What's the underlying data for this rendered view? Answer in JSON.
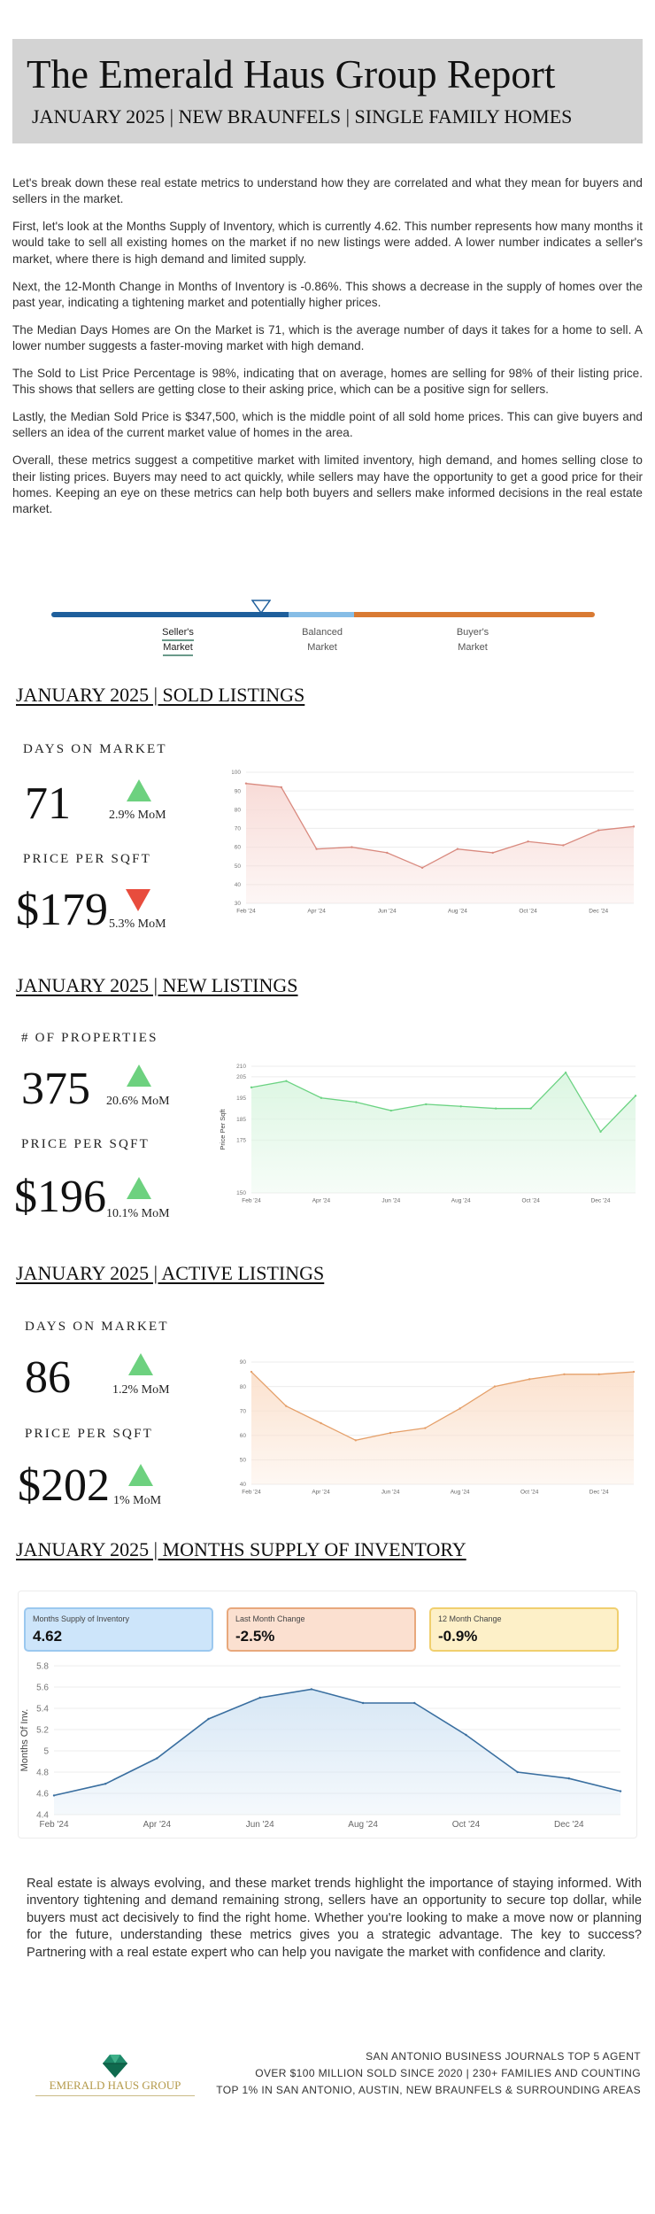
{
  "header": {
    "title": "The Emerald Haus Group Report",
    "subtitle": "JANUARY 2025 | NEW BRAUNFELS | SINGLE FAMILY HOMES"
  },
  "intro": [
    "Let's break down these real estate metrics to understand how they are correlated and what they mean for buyers and sellers in the market.",
    "First, let's look at the Months Supply of Inventory, which is currently 4.62. This number represents how many months it would take to sell all existing homes on the market if no new listings were added. A lower number indicates a seller's market, where there is high demand and limited supply.",
    "Next, the 12-Month Change in Months of Inventory is -0.86%. This shows a decrease in the supply of homes over the past year, indicating a tightening market and potentially higher prices.",
    "The Median Days Homes are On the Market is 71, which is the average number of days it takes for a home to sell. A lower number suggests a faster-moving market with high demand.",
    "The Sold to List Price Percentage is 98%, indicating that on average, homes are selling for 98% of their listing price. This shows that sellers are getting close to their asking price, which can be a positive sign for sellers.",
    "Lastly, the Median Sold Price is $347,500, which is the middle point of all sold home prices. This can give buyers and sellers an idea of the current market value of homes in the area.",
    "Overall, these metrics suggest a competitive market with limited inventory, high demand, and homes selling close to their listing prices. Buyers may need to act quickly, while sellers may have the opportunity to get a good price for their homes. Keeping an eye on these metrics can help both buyers and sellers make informed decisions in the real estate market."
  ],
  "market_scale": {
    "labels": [
      [
        "Seller's",
        "Market"
      ],
      [
        "Balanced",
        "Market"
      ],
      [
        "Buyer's",
        "Market"
      ]
    ],
    "active": "Seller's Market",
    "colors": {
      "seller": "#1e5f9c",
      "balanced": "#86bde6",
      "buyer": "#d97a33"
    }
  },
  "sold": {
    "title": "JANUARY 2025 | SOLD LISTINGS",
    "metric1": {
      "label": "DAYS ON MARKET",
      "value": "71",
      "change": "2.9% MoM",
      "direction": "up"
    },
    "metric2": {
      "label": "PRICE PER SQFT",
      "value": "$179",
      "change": "5.3% MoM",
      "direction": "down"
    }
  },
  "new": {
    "title": "JANUARY 2025 | NEW LISTINGS",
    "metric1": {
      "label": "# OF PROPERTIES",
      "value": "375",
      "change": "20.6% MoM",
      "direction": "up"
    },
    "metric2": {
      "label": "PRICE PER SQFT",
      "value": "$196",
      "change": "10.1% MoM",
      "direction": "up"
    }
  },
  "active": {
    "title": "JANUARY 2025 | ACTIVE LISTINGS",
    "metric1": {
      "label": "DAYS ON MARKET",
      "value": "86",
      "change": "1.2% MoM",
      "direction": "up"
    },
    "metric2": {
      "label": "PRICE PER SQFT",
      "value": "$202",
      "change": "1% MoM",
      "direction": "up"
    }
  },
  "supply": {
    "title": "JANUARY 2025 | MONTHS SUPPLY OF INVENTORY",
    "kpis": [
      {
        "label": "Months Supply of Inventory",
        "value": "4.62",
        "bg": "#cde5fa",
        "border": "#9bc8ef"
      },
      {
        "label": "Last Month Change",
        "value": "-2.5%",
        "bg": "#fbe0d0",
        "border": "#e8a87c"
      },
      {
        "label": "12 Month Change",
        "value": "-0.9%",
        "bg": "#fdf0c8",
        "border": "#f0cf6e"
      }
    ]
  },
  "arrow_colors": {
    "up": "#6dd17f",
    "down": "#e84c3d"
  },
  "chart_data": [
    {
      "type": "area",
      "x": [
        "Feb '24",
        "Mar '24",
        "Apr '24",
        "May '24",
        "Jun '24",
        "Jul '24",
        "Aug '24",
        "Sep '24",
        "Oct '24",
        "Nov '24",
        "Dec '24",
        "Jan '25"
      ],
      "tick_labels": [
        "Feb '24",
        "Apr '24",
        "Jun '24",
        "Aug '24",
        "Oct '24",
        "Dec '24"
      ],
      "values": [
        94,
        92,
        59,
        60,
        57,
        49,
        59,
        57,
        63,
        61,
        69,
        71
      ],
      "ylim": [
        30,
        100
      ],
      "yticks": [
        30,
        40,
        50,
        60,
        70,
        80,
        90,
        100
      ],
      "ylabel": "",
      "color": "#d98a7f",
      "fill": "#f8dcd8",
      "grid": true
    },
    {
      "type": "area",
      "x": [
        "Feb '24",
        "Mar '24",
        "Apr '24",
        "May '24",
        "Jun '24",
        "Jul '24",
        "Aug '24",
        "Sep '24",
        "Oct '24",
        "Nov '24",
        "Dec '24",
        "Jan '25"
      ],
      "tick_labels": [
        "Feb '24",
        "Apr '24",
        "Jun '24",
        "Aug '24",
        "Oct '24",
        "Dec '24"
      ],
      "values": [
        200,
        203,
        195,
        193,
        189,
        192,
        191,
        190,
        190,
        207,
        179,
        196
      ],
      "ylim": [
        150,
        210
      ],
      "yticks": [
        150,
        175,
        185,
        195,
        205,
        210
      ],
      "ylabel": "Price Per Sqft",
      "color": "#6cd383",
      "fill": "#dcf6e2",
      "grid": true
    },
    {
      "type": "area",
      "x": [
        "Feb '24",
        "Mar '24",
        "Apr '24",
        "May '24",
        "Jun '24",
        "Jul '24",
        "Aug '24",
        "Sep '24",
        "Oct '24",
        "Nov '24",
        "Dec '24",
        "Jan '25"
      ],
      "tick_labels": [
        "Feb '24",
        "Apr '24",
        "Jun '24",
        "Aug '24",
        "Oct '24",
        "Dec '24"
      ],
      "values": [
        86,
        72,
        65,
        58,
        61,
        63,
        71,
        80,
        83,
        85,
        85,
        86
      ],
      "ylim": [
        40,
        90
      ],
      "yticks": [
        40,
        50,
        60,
        70,
        80,
        90
      ],
      "ylabel": "",
      "color": "#e5a06a",
      "fill": "#fbe2cf",
      "grid": true
    },
    {
      "type": "area",
      "x": [
        "Feb '24",
        "Mar '24",
        "Apr '24",
        "May '24",
        "Jun '24",
        "Jul '24",
        "Aug '24",
        "Sep '24",
        "Oct '24",
        "Nov '24",
        "Dec '24",
        "Jan '25"
      ],
      "tick_labels": [
        "Feb '24",
        "Apr '24",
        "Jun '24",
        "Aug '24",
        "Oct '24",
        "Dec '24"
      ],
      "values": [
        4.58,
        4.69,
        4.93,
        5.3,
        5.5,
        5.58,
        5.45,
        5.45,
        5.15,
        4.8,
        4.74,
        4.62
      ],
      "ylim": [
        4.4,
        5.8
      ],
      "yticks": [
        4.4,
        4.6,
        4.8,
        5,
        5.2,
        5.4,
        5.6,
        5.8
      ],
      "ylabel": "Months Of Inv.",
      "color": "#3a6fa0",
      "fill": "#d7e7f5",
      "grid": true
    }
  ],
  "outro": "Real estate is always evolving, and these market trends highlight the importance of staying informed. With inventory tightening and demand remaining strong, sellers have an opportunity to secure top dollar, while buyers must act decisively to find the right home. Whether you're looking to make a move now or planning for the future, understanding these metrics gives you a strategic advantage. The key to success? Partnering with a real estate expert who can help you navigate the market with confidence and clarity.",
  "footer": {
    "logo_text": "EMERALD HAUS GROUP",
    "lines": [
      "SAN ANTONIO BUSINESS JOURNALS TOP 5 AGENT",
      "OVER $100 MILLION SOLD SINCE 2020 | 230+ FAMILIES AND COUNTING",
      "TOP 1% IN SAN ANTONIO, AUSTIN, NEW BRAUNFELS & SURROUNDING AREAS"
    ]
  }
}
